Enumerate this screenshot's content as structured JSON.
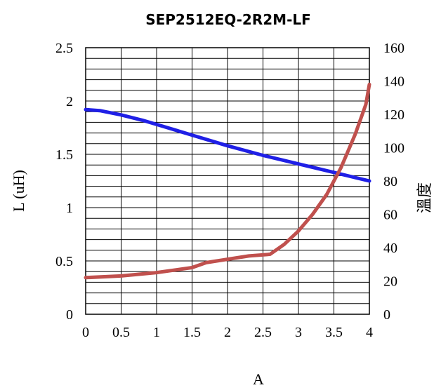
{
  "chart_data": {
    "type": "line",
    "title": "SEP2512EQ-2R2M-LF",
    "xlabel": "A",
    "ylabel_left": "L (uH)",
    "ylabel_right": "溫度",
    "xlim": [
      0,
      4
    ],
    "ylim_left": [
      0,
      2.5
    ],
    "ylim_right": [
      0,
      160
    ],
    "x_ticks": [
      "0",
      "0.5",
      "1",
      "1.5",
      "2",
      "2.5",
      "3",
      "3.5",
      "4"
    ],
    "y_left_ticks": [
      "0",
      "0.5",
      "1",
      "1.5",
      "2",
      "2.5"
    ],
    "y_right_ticks": [
      "0",
      "20",
      "40",
      "60",
      "80",
      "100",
      "120",
      "140",
      "160"
    ],
    "grid": true,
    "series": [
      {
        "axis": "left",
        "color": "#1f1fe6",
        "x": [
          0,
          0.2,
          0.5,
          0.8,
          1.0,
          1.5,
          2.0,
          2.5,
          3.0,
          3.5,
          4.0
        ],
        "values": [
          1.92,
          1.91,
          1.87,
          1.82,
          1.78,
          1.68,
          1.58,
          1.49,
          1.41,
          1.33,
          1.25
        ]
      },
      {
        "axis": "right",
        "color": "#c0504d",
        "x": [
          0,
          0.5,
          1.0,
          1.5,
          1.7,
          2.0,
          2.3,
          2.6,
          2.8,
          3.0,
          3.2,
          3.4,
          3.6,
          3.8,
          3.95,
          4.0
        ],
        "values": [
          22,
          23,
          25,
          28,
          31,
          33,
          35,
          36,
          42,
          50,
          60,
          72,
          88,
          108,
          126,
          138
        ]
      }
    ]
  }
}
